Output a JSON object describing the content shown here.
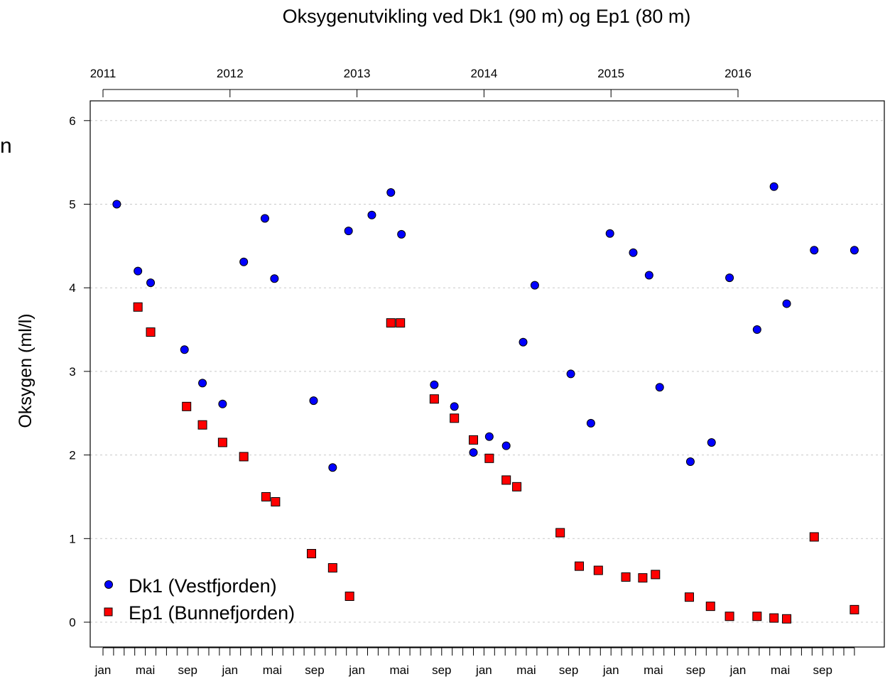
{
  "fragment_text": "n",
  "chart_data": {
    "type": "scatter",
    "title": "Oksygenutvikling ved Dk1 (90 m) og Ep1 (80 m)",
    "ylabel": "Oksygen (ml/l)",
    "xlabel": "",
    "ylim": [
      0,
      6
    ],
    "yticks": [
      0,
      1,
      2,
      3,
      4,
      5,
      6
    ],
    "xlim": [
      -0.3,
      71.7
    ],
    "grid": "horizontal dashed",
    "legend_position": "bottom-left",
    "top_axis": {
      "labels": [
        "2011",
        "2012",
        "2013",
        "2014",
        "2015",
        "2016"
      ],
      "positions": [
        0,
        12,
        24,
        36,
        48,
        60
      ]
    },
    "bottom_axis": {
      "labels": [
        "jan",
        "mai",
        "sep",
        "jan",
        "mai",
        "sep",
        "jan",
        "mai",
        "sep",
        "jan",
        "mai",
        "sep",
        "jan",
        "mai",
        "sep",
        "jan",
        "mai",
        "sep"
      ],
      "positions": [
        0,
        4,
        8,
        12,
        16,
        20,
        24,
        28,
        32,
        36,
        40,
        44,
        48,
        52,
        56,
        60,
        64,
        68
      ],
      "minor_ticks": 72
    },
    "series": [
      {
        "name": "Dk1 (Vestfjorden)",
        "color": "#0000ff",
        "marker": "circle",
        "x": [
          1.3,
          3.3,
          4.5,
          7.7,
          9.4,
          11.3,
          13.3,
          15.3,
          16.2,
          19.9,
          21.7,
          23.2,
          25.4,
          27.2,
          28.2,
          31.3,
          33.2,
          35.0,
          36.5,
          38.1,
          39.7,
          40.8,
          44.2,
          46.1,
          47.9,
          50.1,
          51.6,
          52.6,
          55.5,
          57.5,
          59.2,
          61.8,
          63.4,
          64.6,
          67.2,
          71.0
        ],
        "y": [
          5.0,
          4.2,
          4.06,
          3.26,
          2.86,
          2.61,
          4.31,
          4.83,
          4.11,
          2.65,
          1.85,
          4.68,
          4.87,
          5.14,
          4.64,
          2.84,
          2.58,
          2.03,
          2.22,
          2.11,
          3.35,
          4.03,
          2.97,
          2.38,
          4.65,
          4.42,
          4.15,
          2.81,
          1.92,
          2.15,
          4.12,
          3.5,
          5.21,
          3.81,
          4.45,
          4.45
        ]
      },
      {
        "name": "Ep1 (Bunnefjorden)",
        "color": "#ff0000",
        "marker": "square",
        "x": [
          3.3,
          4.5,
          7.9,
          9.4,
          11.3,
          13.3,
          15.4,
          16.3,
          19.7,
          21.7,
          23.3,
          27.2,
          28.1,
          31.3,
          33.2,
          35.0,
          36.5,
          38.1,
          39.1,
          43.2,
          45.0,
          46.8,
          49.4,
          51.0,
          52.2,
          55.4,
          57.4,
          59.2,
          61.8,
          63.4,
          64.6,
          67.2,
          71.0
        ],
        "y": [
          3.77,
          3.47,
          2.58,
          2.36,
          2.15,
          1.98,
          1.5,
          1.44,
          0.82,
          0.65,
          0.31,
          3.58,
          3.58,
          2.67,
          2.44,
          2.18,
          1.96,
          1.7,
          1.62,
          1.07,
          0.67,
          0.62,
          0.54,
          0.53,
          0.57,
          0.3,
          0.19,
          0.07,
          0.07,
          0.05,
          0.04,
          1.02,
          0.15
        ]
      }
    ]
  }
}
